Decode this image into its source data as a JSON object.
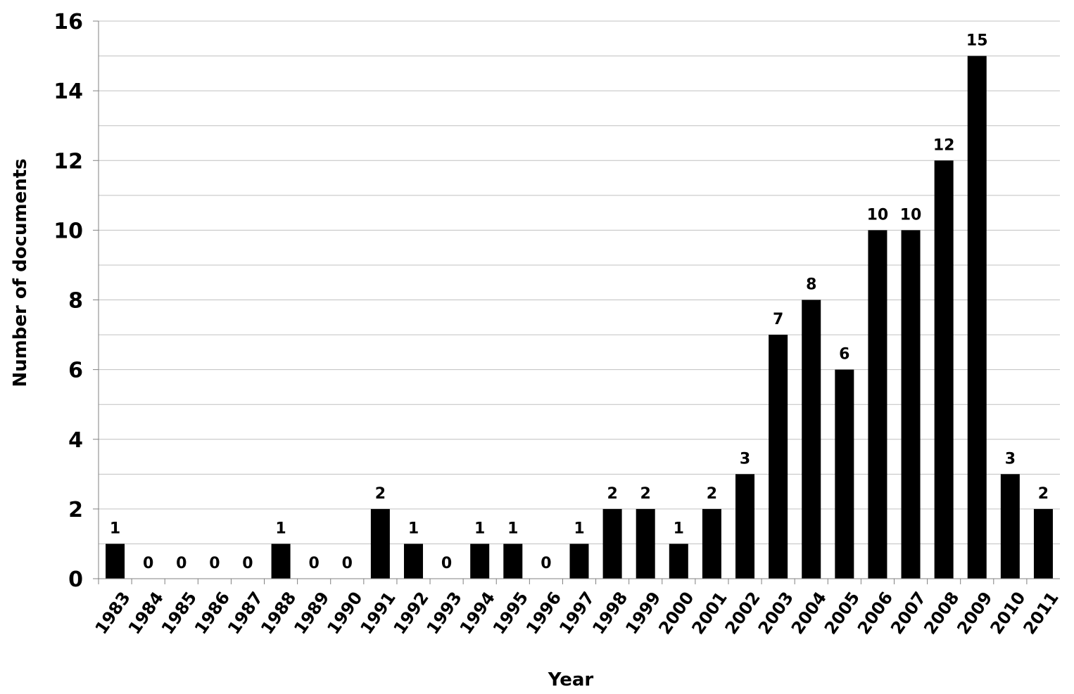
{
  "chart_data": {
    "type": "bar",
    "title": "",
    "xlabel": "Year",
    "ylabel": "Number of documents",
    "ylim": [
      0,
      16
    ],
    "yticks": [
      0,
      2,
      4,
      6,
      8,
      10,
      12,
      14,
      16
    ],
    "grid": true,
    "legend": "none",
    "colors": {
      "bar": "#000000",
      "grid": "#c0c0c0",
      "axis": "#808080"
    },
    "categories": [
      "1983",
      "1984",
      "1985",
      "1986",
      "1987",
      "1988",
      "1989",
      "1990",
      "1991",
      "1992",
      "1993",
      "1994",
      "1995",
      "1996",
      "1997",
      "1998",
      "1999",
      "2000",
      "2001",
      "2002",
      "2003",
      "2004",
      "2005",
      "2006",
      "2007",
      "2008",
      "2009",
      "2010",
      "2011"
    ],
    "values": [
      1,
      0,
      0,
      0,
      0,
      1,
      0,
      0,
      2,
      1,
      0,
      1,
      1,
      0,
      1,
      2,
      2,
      1,
      2,
      3,
      7,
      8,
      6,
      10,
      10,
      12,
      15,
      3,
      2
    ]
  }
}
